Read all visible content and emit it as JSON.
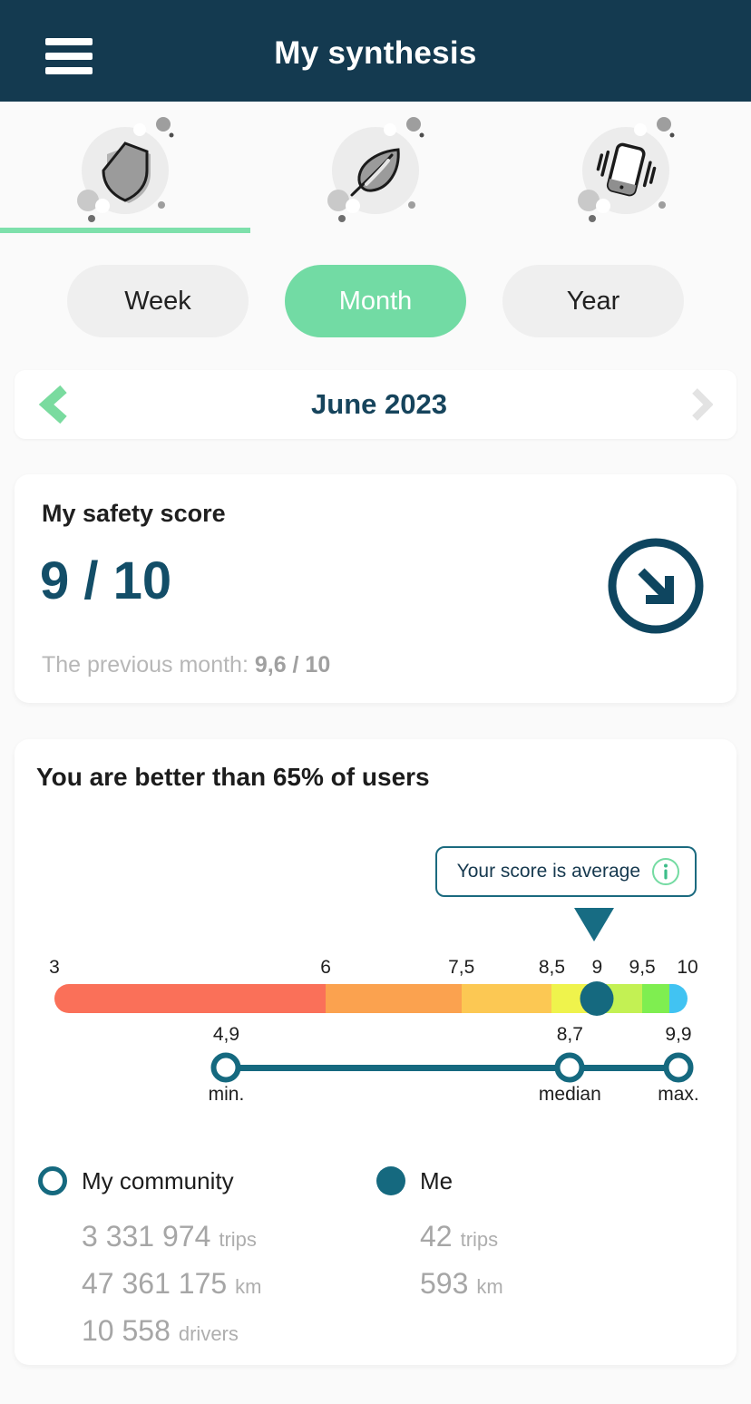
{
  "colors": {
    "header_bg": "#143a50",
    "accent_green": "#72dba4",
    "underline_green": "#7ee0ab",
    "teal": "#15697f",
    "score_text": "#134e68",
    "pointer": "#176c83"
  },
  "header": {
    "title": "My synthesis"
  },
  "category_tabs": [
    {
      "id": "safety",
      "icon": "shield-icon",
      "active": true
    },
    {
      "id": "eco-driving",
      "icon": "leaf-icon",
      "active": false
    },
    {
      "id": "phone-distraction",
      "icon": "vibrating-phone-icon",
      "active": false
    }
  ],
  "period_tabs": {
    "options": [
      "Week",
      "Month",
      "Year"
    ],
    "selected": "Month"
  },
  "date_nav": {
    "label": "June 2023"
  },
  "score_card": {
    "title": "My safety score",
    "score": "9 / 10",
    "previous_label": "The previous month: ",
    "previous_value": "9,6 / 10"
  },
  "comparison_card": {
    "title": "You are better than 65% of users",
    "tooltip": {
      "text": "Your score is average",
      "icon": "info-icon"
    },
    "chart_data": {
      "type": "scale",
      "axis_min": 3,
      "axis_max": 10,
      "ticks": [
        {
          "value": 3,
          "label": "3"
        },
        {
          "value": 6,
          "label": "6"
        },
        {
          "value": 7.5,
          "label": "7,5"
        },
        {
          "value": 8.5,
          "label": "8,5"
        },
        {
          "value": 9,
          "label": "9"
        },
        {
          "value": 9.5,
          "label": "9,5"
        },
        {
          "value": 10,
          "label": "10"
        }
      ],
      "segments": [
        {
          "from": 3,
          "to": 6,
          "color": "#fa7059"
        },
        {
          "from": 6,
          "to": 7.5,
          "color": "#fba24f"
        },
        {
          "from": 7.5,
          "to": 8.5,
          "color": "#fcc853"
        },
        {
          "from": 8.5,
          "to": 9.05,
          "color": "#eff34c"
        },
        {
          "from": 9.05,
          "to": 9.5,
          "color": "#c3f153"
        },
        {
          "from": 9.5,
          "to": 9.8,
          "color": "#7fee50"
        },
        {
          "from": 9.8,
          "to": 10,
          "color": "#41c3f2"
        }
      ],
      "marker": {
        "value": 9,
        "color": "#15697f"
      },
      "stats": [
        {
          "value": 4.9,
          "label": "4,9",
          "name": "min."
        },
        {
          "value": 8.7,
          "label": "8,7",
          "name": "median"
        },
        {
          "value": 9.9,
          "label": "9,9",
          "name": "max."
        }
      ]
    },
    "legend": {
      "community": {
        "label": "My community",
        "stats": [
          {
            "value": "3 331 974",
            "unit": "trips"
          },
          {
            "value": "47 361 175",
            "unit": "km"
          },
          {
            "value": "10 558",
            "unit": "drivers"
          }
        ]
      },
      "me": {
        "label": "Me",
        "stats": [
          {
            "value": "42",
            "unit": "trips"
          },
          {
            "value": "593",
            "unit": "km"
          }
        ]
      }
    }
  }
}
